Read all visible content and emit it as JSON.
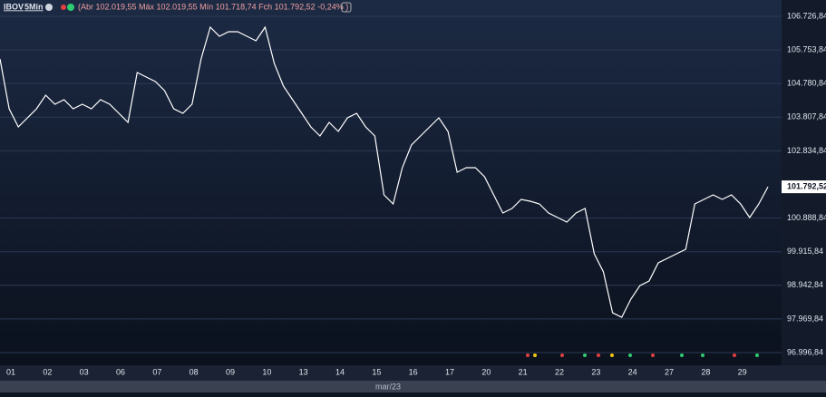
{
  "header": {
    "symbol": "IBOV",
    "interval": "5Min",
    "quote": "(Abr 102.019,55 Máx 102.019,55 Mín 101.718,74 Fch 101.792,52 -0,24% )"
  },
  "chart_data": {
    "type": "line",
    "color": "#ffffff",
    "categories": [
      "01",
      null,
      null,
      null,
      "02",
      null,
      null,
      null,
      "03",
      null,
      null,
      null,
      "06",
      null,
      null,
      null,
      "07",
      null,
      null,
      null,
      "08",
      null,
      null,
      null,
      "09",
      null,
      null,
      null,
      "10",
      null,
      null,
      null,
      "13",
      null,
      null,
      null,
      "14",
      null,
      null,
      null,
      "15",
      null,
      null,
      null,
      "16",
      null,
      null,
      null,
      "17",
      null,
      null,
      null,
      "20",
      null,
      null,
      null,
      "21",
      null,
      null,
      null,
      "22",
      null,
      null,
      null,
      "23",
      null,
      null,
      null,
      "24",
      null,
      null,
      null,
      "27",
      null,
      null,
      null,
      "28",
      null,
      null,
      null,
      "29",
      null,
      null,
      null,
      null
    ],
    "values": [
      105494,
      104051,
      103527,
      103789,
      104051,
      104445,
      104182,
      104314,
      104051,
      104182,
      104051,
      104314,
      104182,
      103920,
      103658,
      105101,
      104970,
      104838,
      104576,
      104051,
      103920,
      104182,
      105494,
      106412,
      106150,
      106281,
      106281,
      106150,
      106019,
      106412,
      105363,
      104707,
      104314,
      103920,
      103527,
      103264,
      103658,
      103396,
      103789,
      103920,
      103527,
      103264,
      101560,
      101297,
      102346,
      103002,
      103264,
      103527,
      103789,
      103396,
      102215,
      102346,
      102346,
      102084,
      101560,
      101035,
      101166,
      101428,
      101376,
      101297,
      101035,
      100904,
      100773,
      101035,
      101166,
      99854,
      99330,
      98149,
      98018,
      98543,
      98936,
      99068,
      99592,
      99723,
      99854,
      99986,
      101297,
      101428,
      101560,
      101428,
      101560,
      101297,
      100904,
      101297,
      101792.52
    ],
    "last_label": "101.792,52",
    "x_axis_label": "mar/23",
    "ylim": [
      96708,
      107199
    ],
    "yticks": [
      {
        "value": 106726.84,
        "label": "106.726,84"
      },
      {
        "value": 105753.84,
        "label": "105.753,84"
      },
      {
        "value": 104780.84,
        "label": "104.780,84"
      },
      {
        "value": 103807.84,
        "label": "103.807,84"
      },
      {
        "value": 102834.84,
        "label": "102.834,84"
      },
      {
        "value": 100888.84,
        "label": "100.888,84"
      },
      {
        "value": 99915.84,
        "label": "99.915,84"
      },
      {
        "value": 98942.84,
        "label": "98.942,84"
      },
      {
        "value": 97969.84,
        "label": "97.969,84"
      },
      {
        "value": 96996.84,
        "label": "96.996,84"
      }
    ],
    "grid": true
  }
}
